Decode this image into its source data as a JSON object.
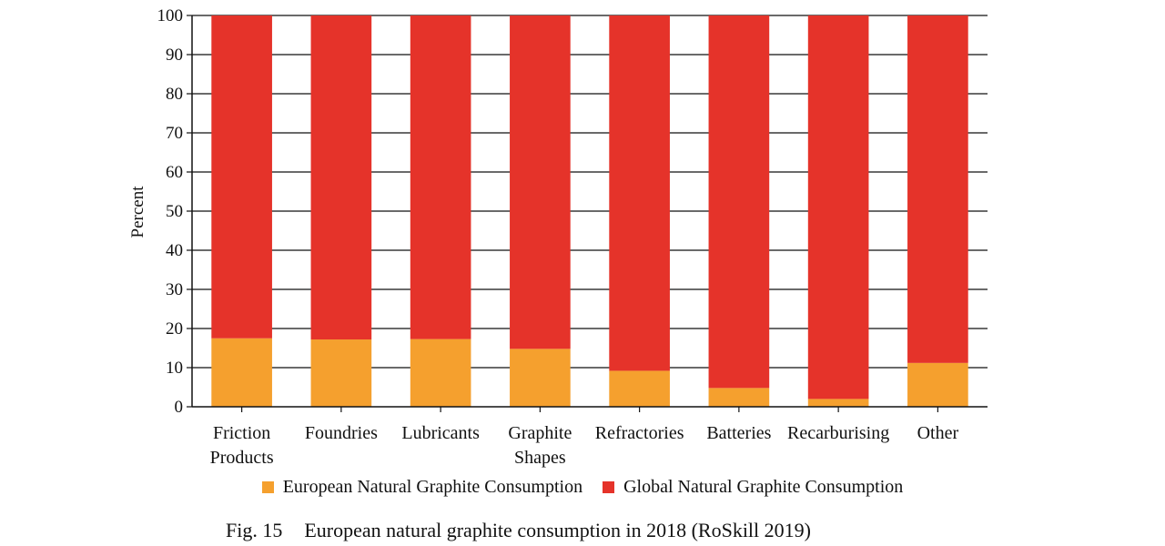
{
  "chart_data": {
    "type": "bar",
    "stacked": true,
    "categories": [
      [
        "Friction",
        "Products"
      ],
      [
        "Foundries"
      ],
      [
        "Lubricants"
      ],
      [
        "Graphite",
        "Shapes"
      ],
      [
        "Refractories"
      ],
      [
        "Batteries"
      ],
      [
        "Recarburising"
      ],
      [
        "Other"
      ]
    ],
    "series": [
      {
        "name": "European Natural Graphite Consumption",
        "color": "#f5a02e",
        "values": [
          17.5,
          17.2,
          17.3,
          14.8,
          9.2,
          4.8,
          2.0,
          11.2
        ]
      },
      {
        "name": "Global Natural Graphite Consumption",
        "color": "#e5332a",
        "values": [
          82.5,
          82.8,
          82.7,
          85.2,
          90.8,
          95.2,
          98.0,
          88.8
        ]
      }
    ],
    "ylabel": "Percent",
    "xlabel": "",
    "ylim": [
      0,
      100
    ],
    "yticks": [
      0,
      10,
      20,
      30,
      40,
      50,
      60,
      70,
      80,
      90,
      100
    ],
    "grid": true,
    "legend_position": "bottom"
  },
  "caption": {
    "figure_number": "Fig. 15",
    "text": "European natural graphite consumption in 2018 (RoSkill 2019)"
  }
}
